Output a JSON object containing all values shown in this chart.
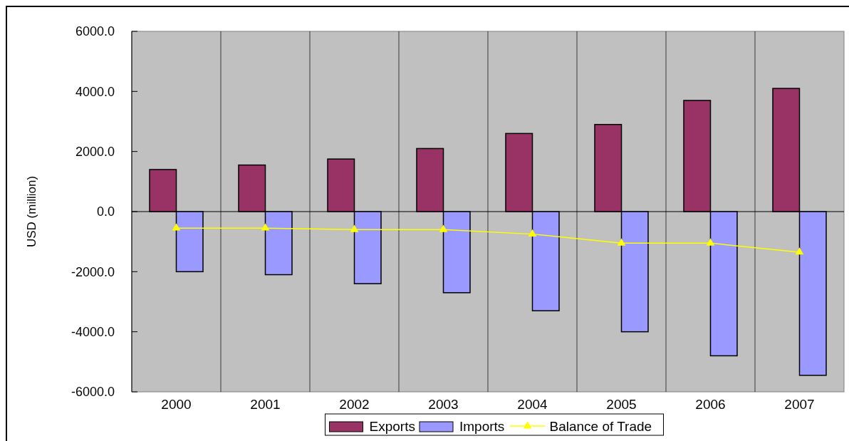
{
  "chart_data": {
    "type": "bar",
    "ylabel": "USD (million)",
    "categories": [
      "2000",
      "2001",
      "2002",
      "2003",
      "2004",
      "2005",
      "2006",
      "2007"
    ],
    "series": [
      {
        "name": "Exports",
        "color": "#993366",
        "values": [
          1400,
          1550,
          1750,
          2100,
          2600,
          2900,
          3700,
          4100
        ]
      },
      {
        "name": "Imports",
        "color": "#9999ff",
        "values": [
          -2000,
          -2100,
          -2400,
          -2700,
          -3300,
          -4000,
          -4800,
          -5450
        ]
      },
      {
        "name": "Balance of Trade",
        "type": "line",
        "color": "#ffff00",
        "marker": "triangle",
        "values": [
          -550,
          -550,
          -600,
          -600,
          -750,
          -1050,
          -1050,
          -1350
        ]
      }
    ],
    "ylim": [
      -6000,
      6000
    ],
    "yticks": [
      {
        "value": -6000,
        "label": "-6000.0"
      },
      {
        "value": -4000,
        "label": "-4000.0"
      },
      {
        "value": -2000,
        "label": "-2000.0"
      },
      {
        "value": 0,
        "label": "0.0"
      },
      {
        "value": 2000,
        "label": "2000.0"
      },
      {
        "value": 4000,
        "label": "4000.0"
      },
      {
        "value": 6000,
        "label": "6000.0"
      }
    ],
    "grid": "x",
    "legend": "bottom"
  }
}
